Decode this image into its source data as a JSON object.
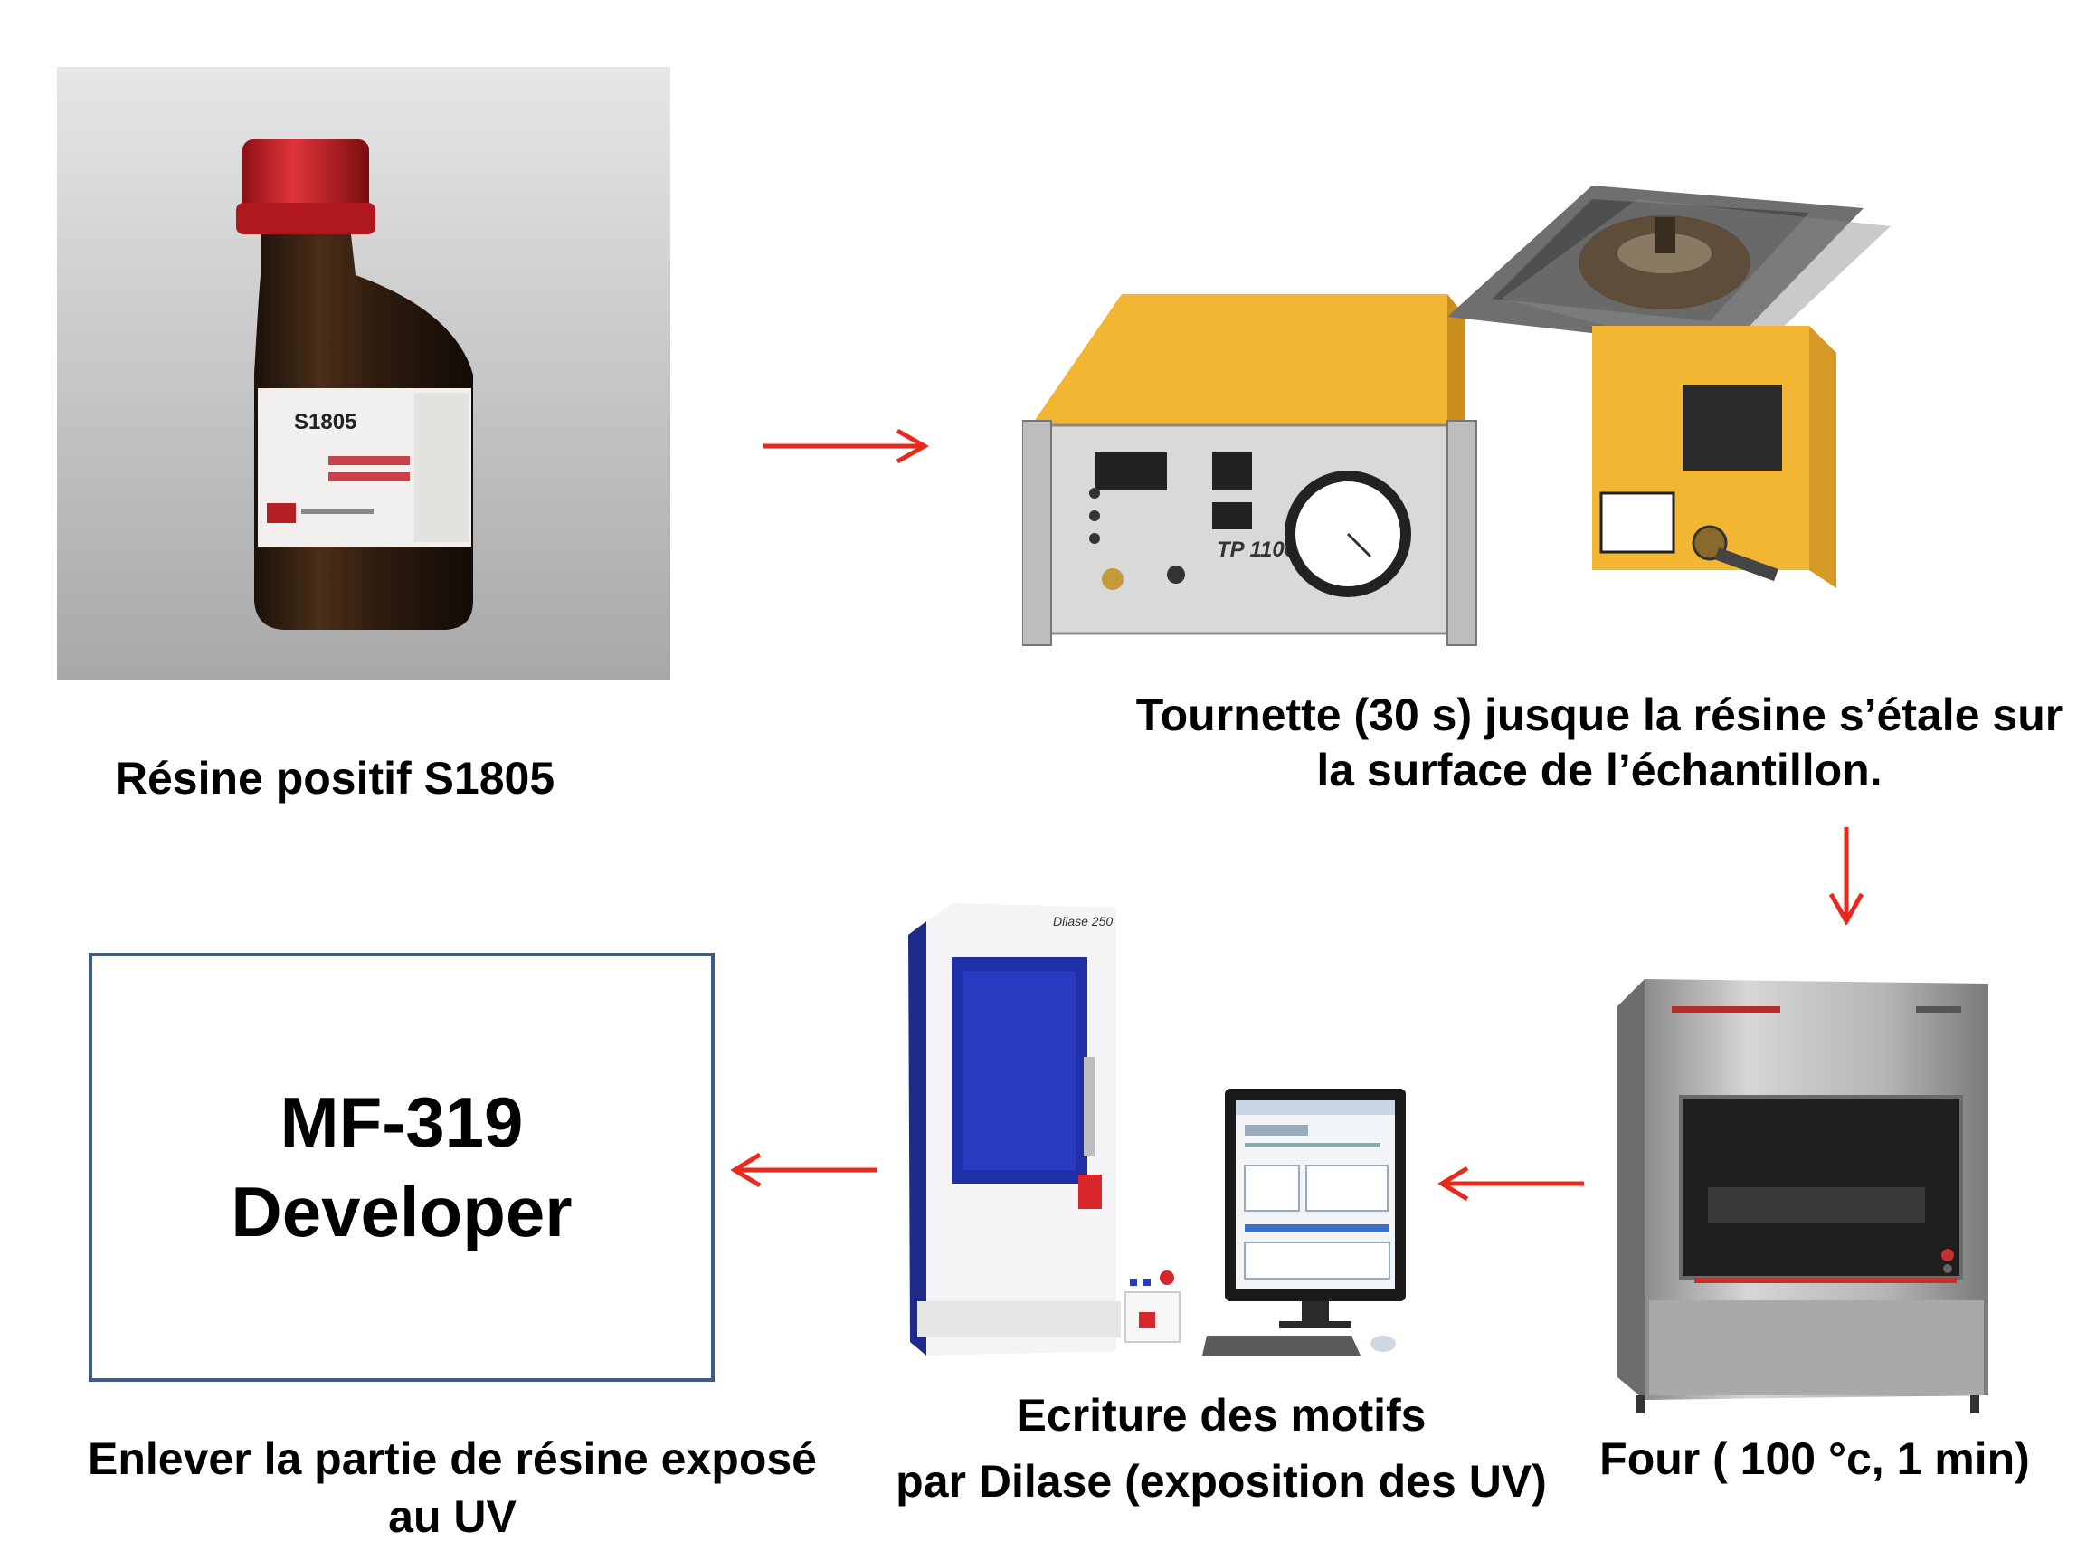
{
  "steps": {
    "resin": {
      "caption": "Résine positif S1805",
      "bottle_label": "S1805"
    },
    "spin_coater": {
      "caption_line1": "Tournette (30 s) jusque la résine s’étale sur",
      "caption_line2": "la surface de l’échantillon.",
      "device_label": "TP 1100"
    },
    "oven": {
      "caption": "Four ( 100 °c, 1 min)"
    },
    "dilase": {
      "caption_line1": "Ecriture des motifs",
      "caption_line2": "par Dilase (exposition des UV)",
      "device_label": "Dilase 250"
    },
    "developer": {
      "box_line1": "MF-319",
      "box_line2": "Developer",
      "caption_line1": "Enlever la partie de résine exposé",
      "caption_line2": "au UV"
    }
  },
  "colors": {
    "arrow": "#e8291c",
    "box_border": "#3f5a8a",
    "machine_yellow": "#f2b632",
    "dilase_blue": "#1f2fa8",
    "bottle_cap": "#d8262a"
  },
  "icons": [
    "arrow-right-icon",
    "arrow-down-icon",
    "arrow-left-icon"
  ]
}
